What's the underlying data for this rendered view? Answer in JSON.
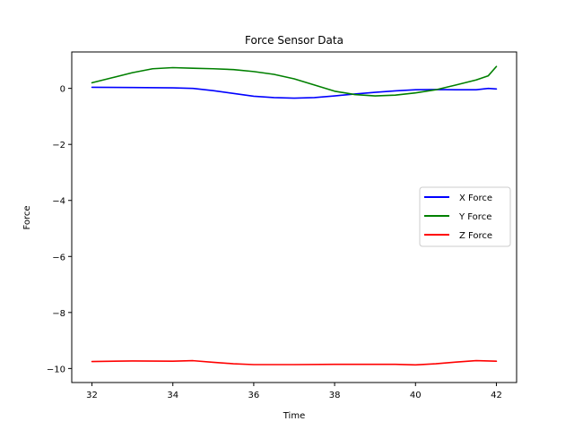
{
  "chart_data": {
    "type": "line",
    "title": "Force Sensor Data",
    "xlabel": "Time",
    "ylabel": "Force",
    "xlim": [
      31.5,
      42.5
    ],
    "ylim": [
      -10.5,
      1.3
    ],
    "xticks": [
      32,
      34,
      36,
      38,
      40,
      42
    ],
    "yticks": [
      0,
      -2,
      -4,
      -6,
      -8,
      -10
    ],
    "xtick_labels": [
      "32",
      "34",
      "36",
      "38",
      "40",
      "42"
    ],
    "ytick_labels": [
      "0",
      "−2",
      "−4",
      "−6",
      "−8",
      "−10"
    ],
    "grid": false,
    "legend_position": "center-right",
    "series": [
      {
        "name": "X Force",
        "color": "#0000ff",
        "x": [
          32,
          33,
          34,
          34.5,
          35,
          35.5,
          36,
          36.5,
          37,
          37.5,
          38,
          38.5,
          39,
          39.5,
          40,
          40.5,
          41,
          41.5,
          41.8,
          42
        ],
        "y": [
          0.04,
          0.03,
          0.02,
          0.0,
          -0.08,
          -0.18,
          -0.28,
          -0.33,
          -0.35,
          -0.33,
          -0.27,
          -0.2,
          -0.14,
          -0.09,
          -0.05,
          -0.04,
          -0.05,
          -0.05,
          0.0,
          -0.02
        ]
      },
      {
        "name": "Y Force",
        "color": "#008000",
        "x": [
          32,
          32.5,
          33,
          33.5,
          34,
          34.5,
          35,
          35.5,
          36,
          36.5,
          37,
          37.5,
          38,
          38.5,
          39,
          39.5,
          40,
          40.5,
          41,
          41.5,
          41.8,
          42
        ],
        "y": [
          0.2,
          0.38,
          0.56,
          0.7,
          0.74,
          0.72,
          0.7,
          0.67,
          0.6,
          0.5,
          0.34,
          0.12,
          -0.1,
          -0.22,
          -0.27,
          -0.24,
          -0.16,
          -0.05,
          0.12,
          0.3,
          0.45,
          0.78
        ]
      },
      {
        "name": "Z Force",
        "color": "#ff0000",
        "x": [
          32,
          33,
          34,
          34.5,
          35,
          35.5,
          36,
          37,
          38,
          39,
          39.5,
          40,
          40.5,
          41,
          41.5,
          42
        ],
        "y": [
          -9.75,
          -9.73,
          -9.74,
          -9.72,
          -9.78,
          -9.83,
          -9.86,
          -9.86,
          -9.85,
          -9.85,
          -9.85,
          -9.87,
          -9.83,
          -9.77,
          -9.72,
          -9.74
        ]
      }
    ]
  }
}
